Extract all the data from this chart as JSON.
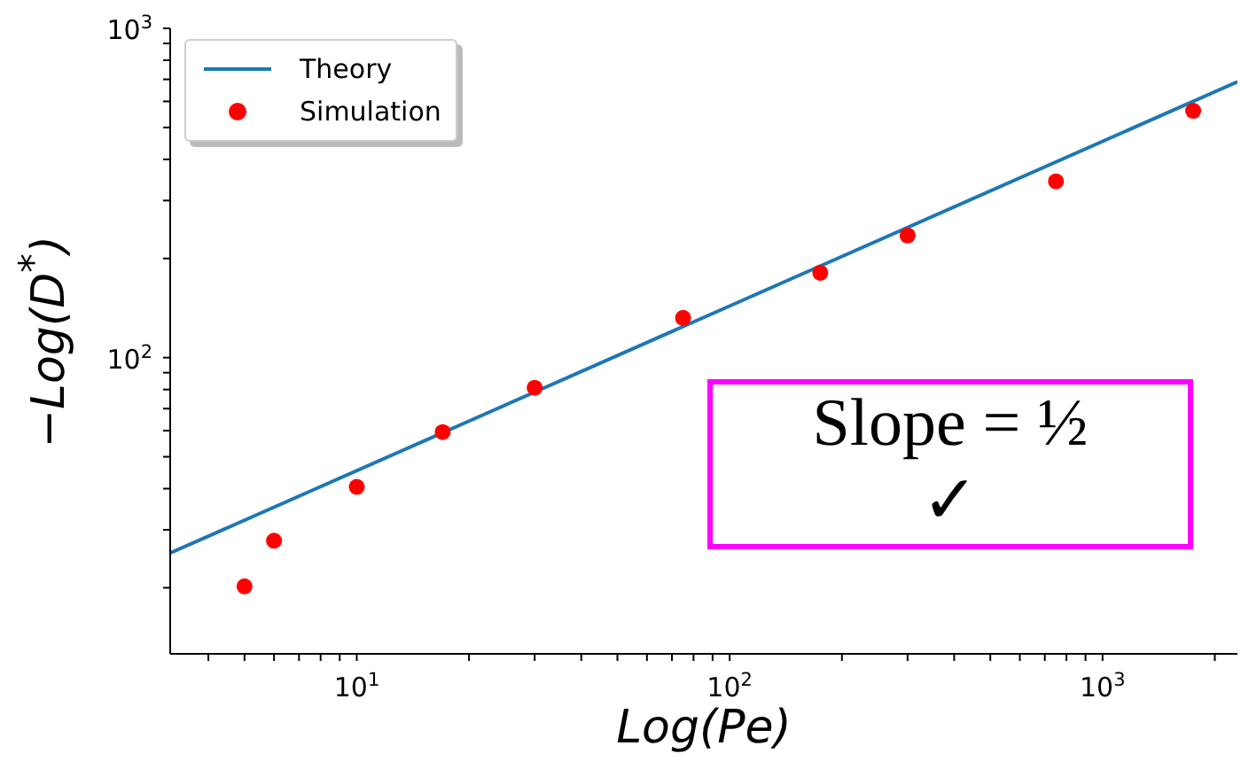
{
  "chart_data": {
    "type": "scatter",
    "xlabel": "Log(Pe)",
    "ylabel": "−Log(D$^{*}$)",
    "log": "xy",
    "xlim": [
      3.16,
      2300
    ],
    "ylim": [
      12.6,
      1000
    ],
    "xticks": [
      {
        "value": 4,
        "label": null
      },
      {
        "value": 5,
        "label": null
      },
      {
        "value": 6,
        "label": null
      },
      {
        "value": 7,
        "label": null
      },
      {
        "value": 8,
        "label": null
      },
      {
        "value": 9,
        "label": null
      },
      {
        "value": 10,
        "label": "10$^{1}$"
      },
      {
        "value": 20,
        "label": null
      },
      {
        "value": 30,
        "label": null
      },
      {
        "value": 40,
        "label": null
      },
      {
        "value": 50,
        "label": null
      },
      {
        "value": 60,
        "label": null
      },
      {
        "value": 70,
        "label": null
      },
      {
        "value": 80,
        "label": null
      },
      {
        "value": 90,
        "label": null
      },
      {
        "value": 100,
        "label": "10$^{2}$"
      },
      {
        "value": 200,
        "label": null
      },
      {
        "value": 300,
        "label": null
      },
      {
        "value": 400,
        "label": null
      },
      {
        "value": 500,
        "label": null
      },
      {
        "value": 600,
        "label": null
      },
      {
        "value": 700,
        "label": null
      },
      {
        "value": 800,
        "label": null
      },
      {
        "value": 900,
        "label": null
      },
      {
        "value": 1000,
        "label": "10$^{3}$"
      },
      {
        "value": 2000,
        "label": null
      }
    ],
    "yticks": [
      {
        "value": 20,
        "label": null
      },
      {
        "value": 30,
        "label": null
      },
      {
        "value": 40,
        "label": null
      },
      {
        "value": 50,
        "label": null
      },
      {
        "value": 60,
        "label": null
      },
      {
        "value": 70,
        "label": null
      },
      {
        "value": 80,
        "label": null
      },
      {
        "value": 90,
        "label": null
      },
      {
        "value": 100,
        "label": "10$^{2}$"
      },
      {
        "value": 200,
        "label": null
      },
      {
        "value": 300,
        "label": null
      },
      {
        "value": 400,
        "label": null
      },
      {
        "value": 500,
        "label": null
      },
      {
        "value": 600,
        "label": null
      },
      {
        "value": 700,
        "label": null
      },
      {
        "value": 800,
        "label": null
      },
      {
        "value": 900,
        "label": null
      },
      {
        "value": 1000,
        "label": "10$^{3}$"
      }
    ],
    "grid": false,
    "legend": "top left",
    "annotations": [
      "Slope = ½",
      "✓"
    ],
    "series": [
      {
        "name": "Theory",
        "type": "line",
        "marker": "none",
        "color": "#1f77b4",
        "x": [
          3.16,
          2300
        ],
        "values": [
          25.5,
          688
        ]
      },
      {
        "name": "Simulation",
        "marker": "circle",
        "color": "#ff0000",
        "x": [
          5,
          6,
          10,
          17,
          30,
          75,
          175,
          300,
          750,
          1750
        ],
        "values": [
          20.2,
          27.8,
          40.5,
          59.4,
          81,
          132,
          181,
          235,
          343,
          562
        ]
      }
    ]
  }
}
